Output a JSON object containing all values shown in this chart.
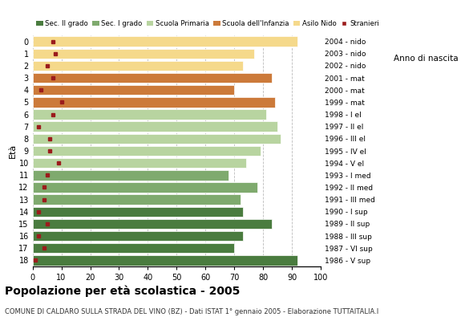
{
  "ages": [
    18,
    17,
    16,
    15,
    14,
    13,
    12,
    11,
    10,
    9,
    8,
    7,
    6,
    5,
    4,
    3,
    2,
    1,
    0
  ],
  "bar_values": [
    92,
    70,
    73,
    83,
    73,
    72,
    78,
    68,
    74,
    79,
    86,
    85,
    81,
    84,
    70,
    83,
    73,
    77,
    92
  ],
  "stranieri_values": [
    1,
    4,
    2,
    5,
    2,
    4,
    4,
    5,
    9,
    6,
    6,
    2,
    7,
    10,
    3,
    7,
    5,
    8,
    7
  ],
  "bar_colors": [
    "#4a7c3f",
    "#4a7c3f",
    "#4a7c3f",
    "#4a7c3f",
    "#4a7c3f",
    "#7faa6e",
    "#7faa6e",
    "#7faa6e",
    "#b8d4a0",
    "#b8d4a0",
    "#b8d4a0",
    "#b8d4a0",
    "#b8d4a0",
    "#cc7a3a",
    "#cc7a3a",
    "#cc7a3a",
    "#f5d98b",
    "#f5d98b",
    "#f5d98b"
  ],
  "right_labels": [
    "1986 - V sup",
    "1987 - VI sup",
    "1988 - III sup",
    "1989 - II sup",
    "1990 - I sup",
    "1991 - III med",
    "1992 - II med",
    "1993 - I med",
    "1994 - V el",
    "1995 - IV el",
    "1996 - III el",
    "1997 - II el",
    "1998 - I el",
    "1999 - mat",
    "2000 - mat",
    "2001 - mat",
    "2002 - nido",
    "2003 - nido",
    "2004 - nido"
  ],
  "legend_labels": [
    "Sec. II grado",
    "Sec. I grado",
    "Scuola Primaria",
    "Scuola dell'Infanzia",
    "Asilo Nido",
    "Stranieri"
  ],
  "legend_colors": [
    "#4a7c3f",
    "#7faa6e",
    "#b8d4a0",
    "#cc7a3a",
    "#f5d98b",
    "#9b1c1c"
  ],
  "stranieri_color": "#9b1c1c",
  "title": "Popolazione per età scolastica - 2005",
  "subtitle": "COMUNE DI CALDARO SULLA STRADA DEL VINO (BZ) - Dati ISTAT 1° gennaio 2005 - Elaborazione TUTTAITALIA.I",
  "ylabel": "Età",
  "right_ylabel": "Anno di nascita",
  "xlim": [
    0,
    100
  ],
  "xticks": [
    0,
    10,
    20,
    30,
    40,
    50,
    60,
    70,
    80,
    90,
    100
  ]
}
